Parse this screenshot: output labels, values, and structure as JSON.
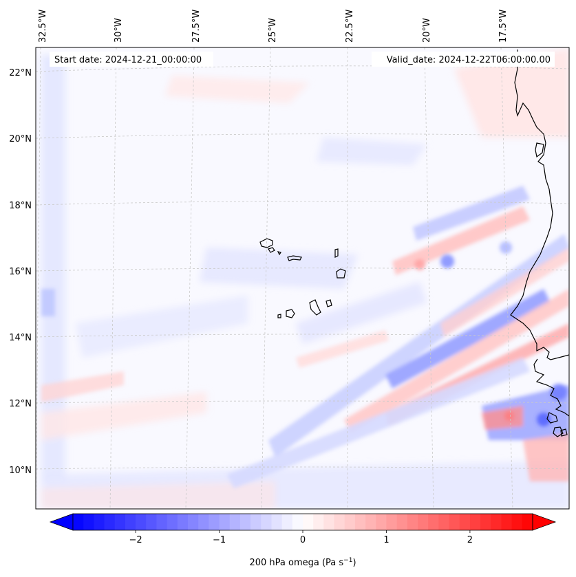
{
  "map": {
    "start_date": "Start date: 2024-12-21_00:00:00",
    "valid_date": "Valid_date: 2024-12-22T06:00:00.00",
    "lon_labels": [
      "32.5°W",
      "30°W",
      "27.5°W",
      "25°W",
      "22.5°W",
      "20°W",
      "17.5°W"
    ],
    "lat_labels": [
      "22°N",
      "20°N",
      "18°N",
      "16°N",
      "14°N",
      "12°N",
      "10°N"
    ],
    "colors": {
      "negative": "#0000ff",
      "neutral": "#ffffff",
      "positive": "#ff0000",
      "coastline": "#000000",
      "gridline": "#b0b0b0"
    }
  },
  "colorbar": {
    "min": -2.75,
    "max": 2.75,
    "ticks": [
      -2,
      -1,
      0,
      1,
      2
    ],
    "tick_labels": [
      "−2",
      "−1",
      "0",
      "1",
      "2"
    ],
    "label": "200 hPa omega (Pa s⁻¹)",
    "label_main": "200 hPa omega (Pa s",
    "label_sup": "−1",
    "label_close": ")"
  }
}
